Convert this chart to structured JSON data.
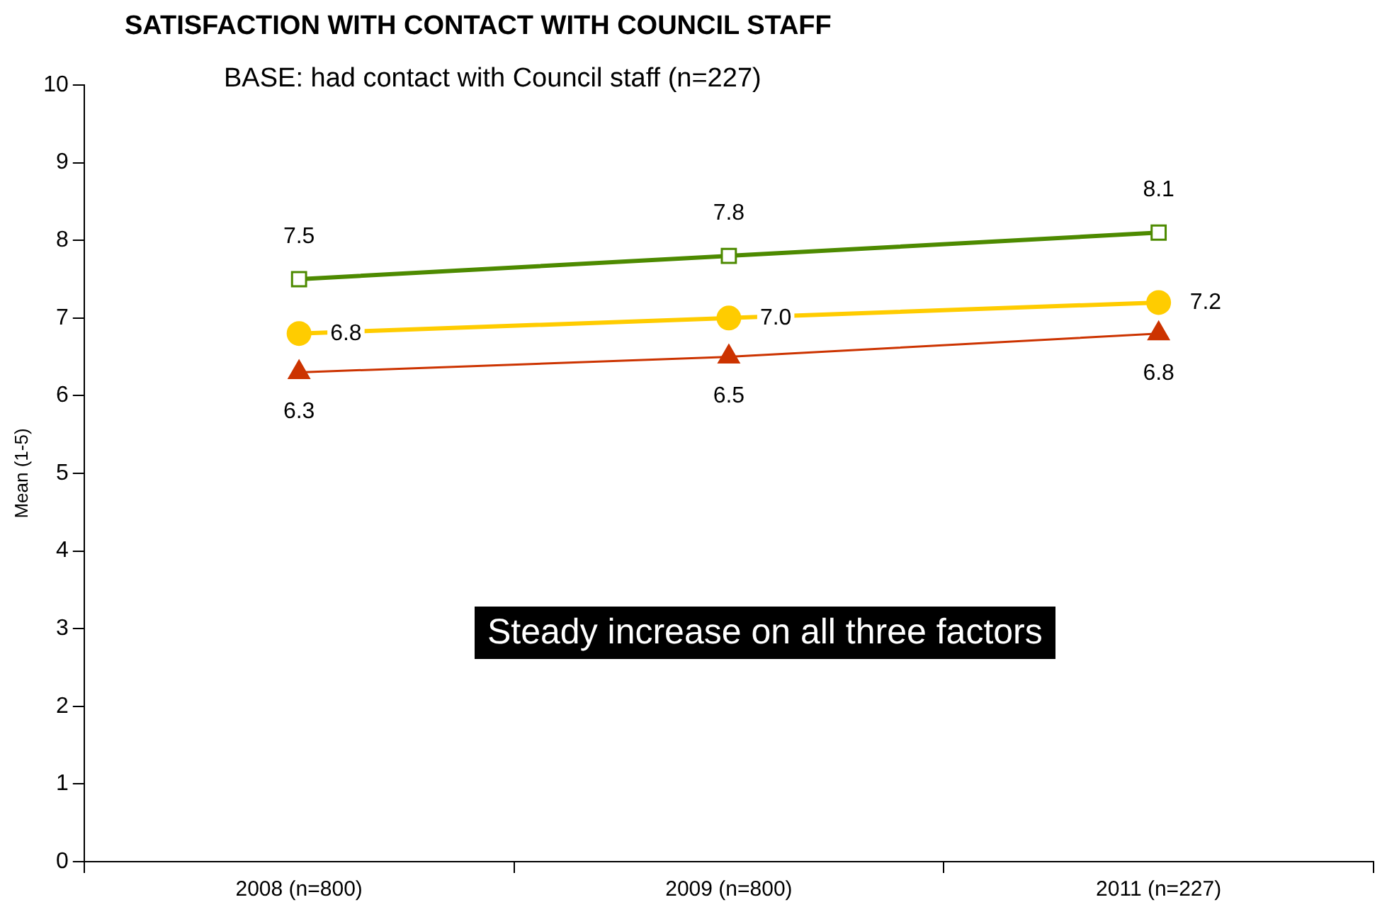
{
  "chart_data": {
    "type": "line",
    "title": "SATISFACTION WITH CONTACT WITH COUNCIL STAFF",
    "subtitle": "BASE: had contact with Council staff (n=227)",
    "ylabel": "Mean (1-5)",
    "categories": [
      "2008 (n=800)",
      "2009 (n=800)",
      "2011 (n=227)"
    ],
    "series": [
      {
        "color": "#4d8a00",
        "values": [
          7.5,
          7.8,
          8.1
        ],
        "value_labels": [
          "7.5",
          "7.8",
          "8.1"
        ],
        "marker": "square"
      },
      {
        "color": "#ffcc00",
        "values": [
          6.8,
          7.0,
          7.2
        ],
        "value_labels": [
          "6.8",
          "7.0",
          "7.2"
        ],
        "marker": "circle"
      },
      {
        "color": "#cc3300",
        "values": [
          6.3,
          6.5,
          6.8
        ],
        "value_labels": [
          "6.3",
          "6.5",
          "6.8"
        ],
        "marker": "triangle"
      }
    ],
    "ylim": [
      0,
      10
    ],
    "yticks": [
      0,
      1,
      2,
      3,
      4,
      5,
      6,
      7,
      8,
      9,
      10
    ],
    "grid": false,
    "legend": false,
    "line_style": "solid",
    "annotations": [
      "Steady increase on all three factors"
    ]
  }
}
